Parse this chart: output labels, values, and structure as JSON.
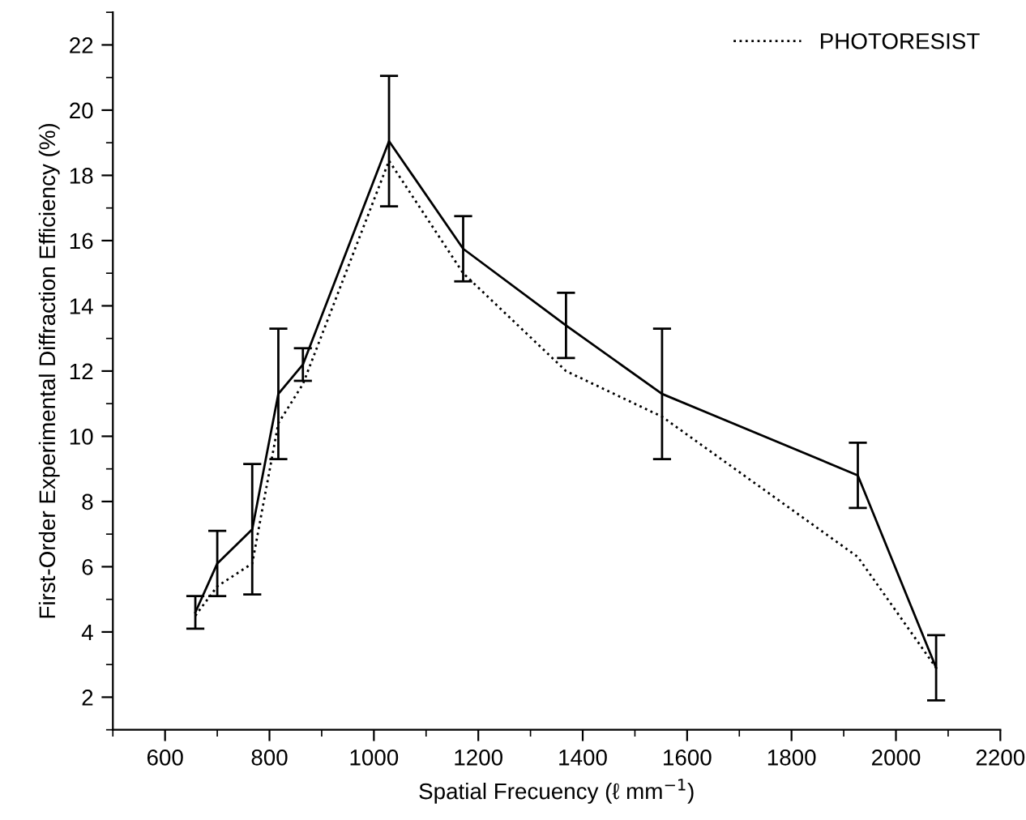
{
  "chart_data": {
    "type": "line",
    "xlabel": "Spatial Frecuency (ℓ mm$^{−1}$)",
    "ylabel": "First-Order Experimental Diffraction Efficiency (%)",
    "xlim": [
      500,
      2200
    ],
    "xticks": [
      600,
      800,
      1000,
      1200,
      1400,
      1600,
      1800,
      2000,
      2200
    ],
    "ylim": [
      1,
      23
    ],
    "yticks": [
      2,
      4,
      6,
      8,
      10,
      12,
      14,
      16,
      18,
      20,
      22
    ],
    "grid": false,
    "legend": "top right",
    "marker": "none",
    "series": [
      {
        "color": "#000000",
        "line_style": "solid",
        "x": [
          658,
          700,
          767,
          817,
          864,
          1029,
          1171,
          1368,
          1552,
          1927,
          2077
        ],
        "values": [
          4.6,
          6.1,
          7.15,
          11.3,
          12.2,
          19.05,
          15.75,
          13.4,
          11.3,
          8.8,
          2.9
        ],
        "errors": [
          0.5,
          1,
          2,
          2,
          0.5,
          2,
          1,
          1,
          2,
          1,
          1
        ]
      },
      {
        "name": "PHOTORESIST",
        "color": "#000000",
        "line_style": "dotted",
        "x": [
          658,
          700,
          767,
          817,
          864,
          1029,
          1171,
          1368,
          1552,
          1927,
          2077
        ],
        "values": [
          4.5,
          5.4,
          6.1,
          10.4,
          11.6,
          18.45,
          15.0,
          12.0,
          10.6,
          6.3,
          2.9
        ]
      }
    ]
  }
}
